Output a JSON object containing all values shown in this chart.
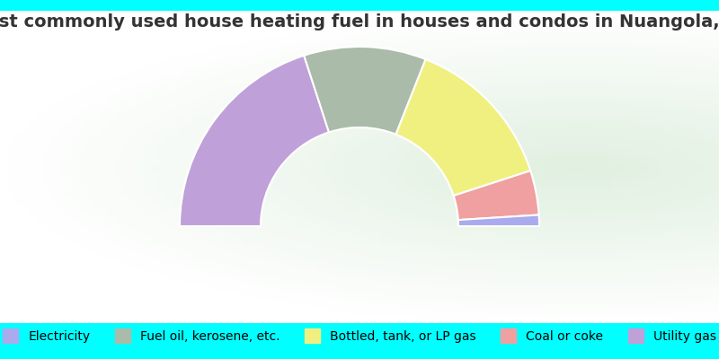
{
  "title": "Most commonly used house heating fuel in houses and condos in Nuangola, PA",
  "background_color": "#00FFFF",
  "segments": [
    {
      "label": "Electricity",
      "value": 2,
      "color": "#aaaaee"
    },
    {
      "label": "Fuel oil, kerosene, etc.",
      "value": 22,
      "color": "#aabbaa"
    },
    {
      "label": "Bottled, tank, or LP gas",
      "value": 28,
      "color": "#f0f080"
    },
    {
      "label": "Coal or coke",
      "value": 8,
      "color": "#f0a0a0"
    },
    {
      "label": "Utility gas",
      "value": 40,
      "color": "#c0a0d8"
    }
  ],
  "draw_order": [
    4,
    1,
    2,
    3,
    0
  ],
  "legend_order": [
    0,
    1,
    2,
    3,
    4
  ],
  "donut_inner_ratio": 0.55,
  "title_fontsize": 14,
  "legend_fontsize": 10
}
